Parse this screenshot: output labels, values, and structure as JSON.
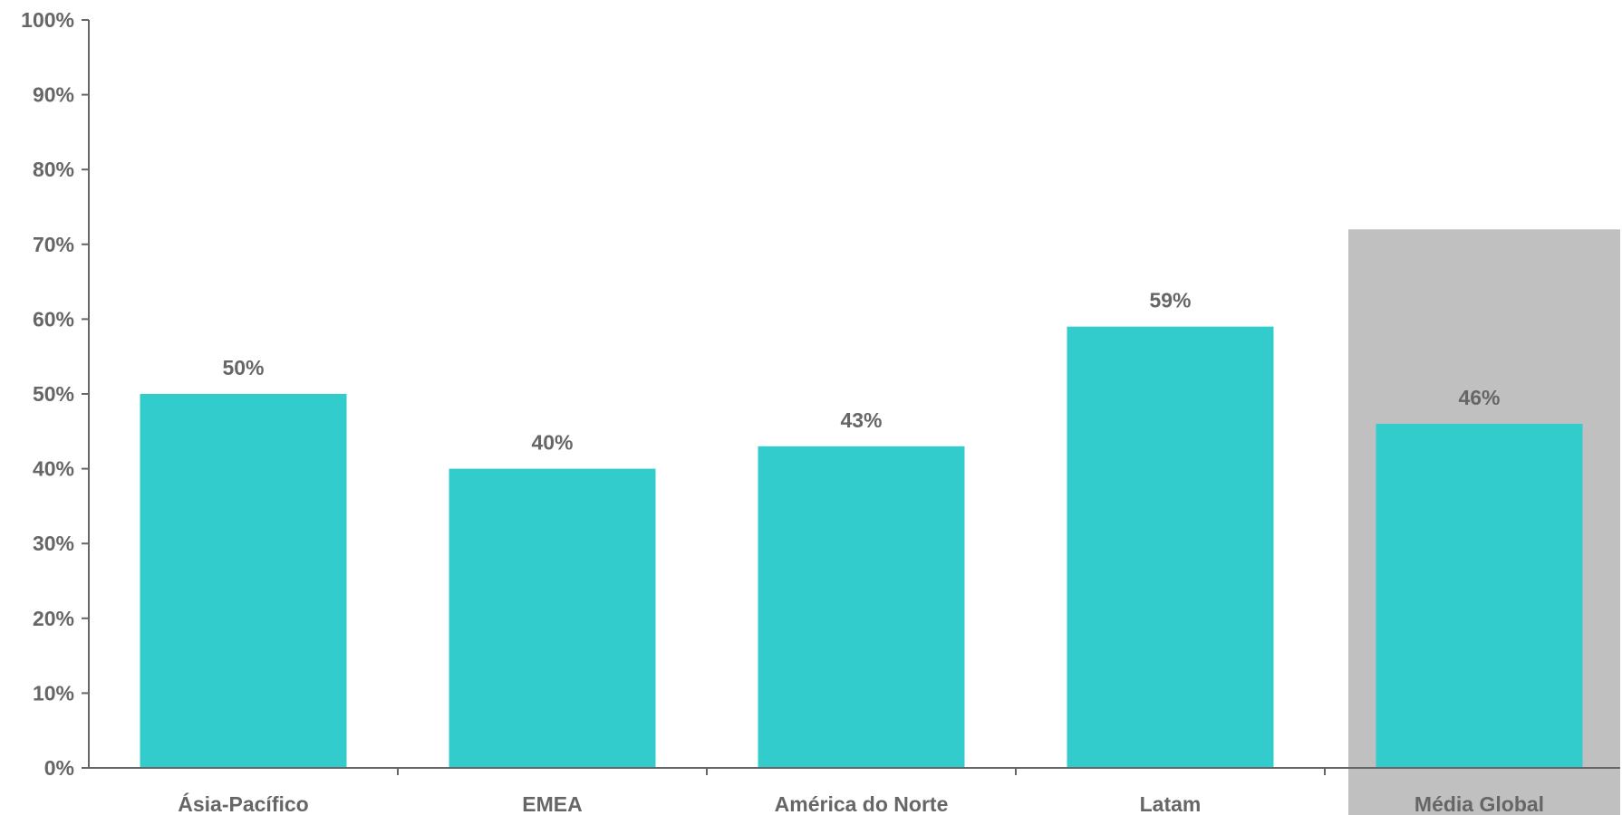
{
  "chart_data": {
    "type": "bar",
    "categories": [
      "Ásia-Pacífico",
      "EMEA",
      "América do Norte",
      "Latam",
      "Média Global"
    ],
    "values": [
      50,
      40,
      43,
      59,
      46
    ],
    "value_labels": [
      "50%",
      "40%",
      "43%",
      "59%",
      "46%"
    ],
    "title": "",
    "xlabel": "",
    "ylabel": "",
    "ylim": [
      0,
      100
    ],
    "yticks": [
      0,
      10,
      20,
      30,
      40,
      50,
      60,
      70,
      80,
      90,
      100
    ],
    "ytick_labels": [
      "0%",
      "10%",
      "20%",
      "30%",
      "40%",
      "50%",
      "60%",
      "70%",
      "80%",
      "90%",
      "100%"
    ],
    "grid": false,
    "legend": "none",
    "highlighted_category": "Média Global",
    "colors": {
      "bar": "#33CCCC",
      "highlight_background": "#C0C0C0",
      "text": "#666666",
      "axis": "#666666"
    }
  }
}
